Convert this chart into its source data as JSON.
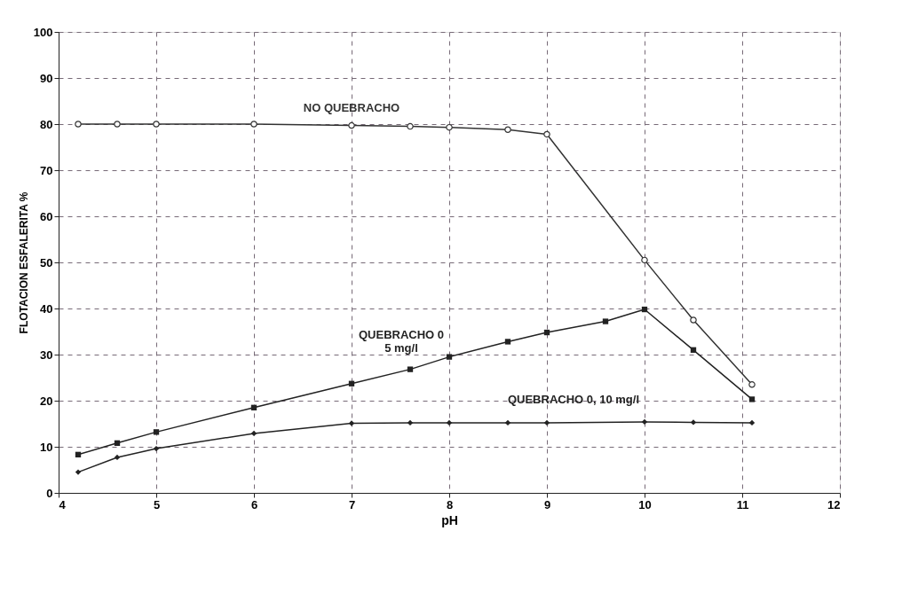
{
  "chart_data": {
    "type": "line",
    "xlabel": "pH",
    "ylabel": "FLOTACION ESFALERITA %",
    "xlim": [
      4,
      12
    ],
    "xticks": [
      4,
      5,
      6,
      7,
      8,
      9,
      10,
      11,
      12
    ],
    "ylim": [
      0,
      100
    ],
    "yticks": [
      0,
      10,
      20,
      30,
      40,
      50,
      60,
      70,
      80,
      90,
      100
    ],
    "grid": true,
    "line_style": "solid",
    "series": [
      {
        "name": "NO QUEBRACHO",
        "color": "#333333",
        "marker": "circle",
        "x": [
          4.2,
          4.6,
          5,
          6,
          7,
          7.6,
          8,
          8.6,
          9,
          10,
          10.5,
          11.1
        ],
        "values": [
          80,
          80,
          80,
          80,
          79.7,
          79.5,
          79.3,
          78.8,
          77.8,
          50.5,
          37.5,
          23.5
        ]
      },
      {
        "name": "QUEBRACHO  0\n5 mg/l",
        "color": "#222222",
        "marker": "square",
        "x": [
          4.2,
          4.6,
          5,
          6,
          7,
          7.6,
          8,
          8.6,
          9,
          9.6,
          10,
          10.5,
          11.1
        ],
        "values": [
          8.3,
          10.8,
          13.2,
          18.5,
          23.7,
          26.8,
          29.5,
          32.8,
          34.8,
          37.2,
          39.8,
          31,
          20.3
        ]
      },
      {
        "name": "QUEBRACHO  0,  10 mg/l",
        "color": "#222222",
        "marker": "diamond",
        "x": [
          4.2,
          4.6,
          5,
          6,
          7,
          7.6,
          8,
          8.6,
          9,
          10,
          10.5,
          11.1
        ],
        "values": [
          4.5,
          7.7,
          9.6,
          12.9,
          15.1,
          15.2,
          15.2,
          15.2,
          15.2,
          15.4,
          15.3,
          15.2
        ]
      }
    ]
  }
}
